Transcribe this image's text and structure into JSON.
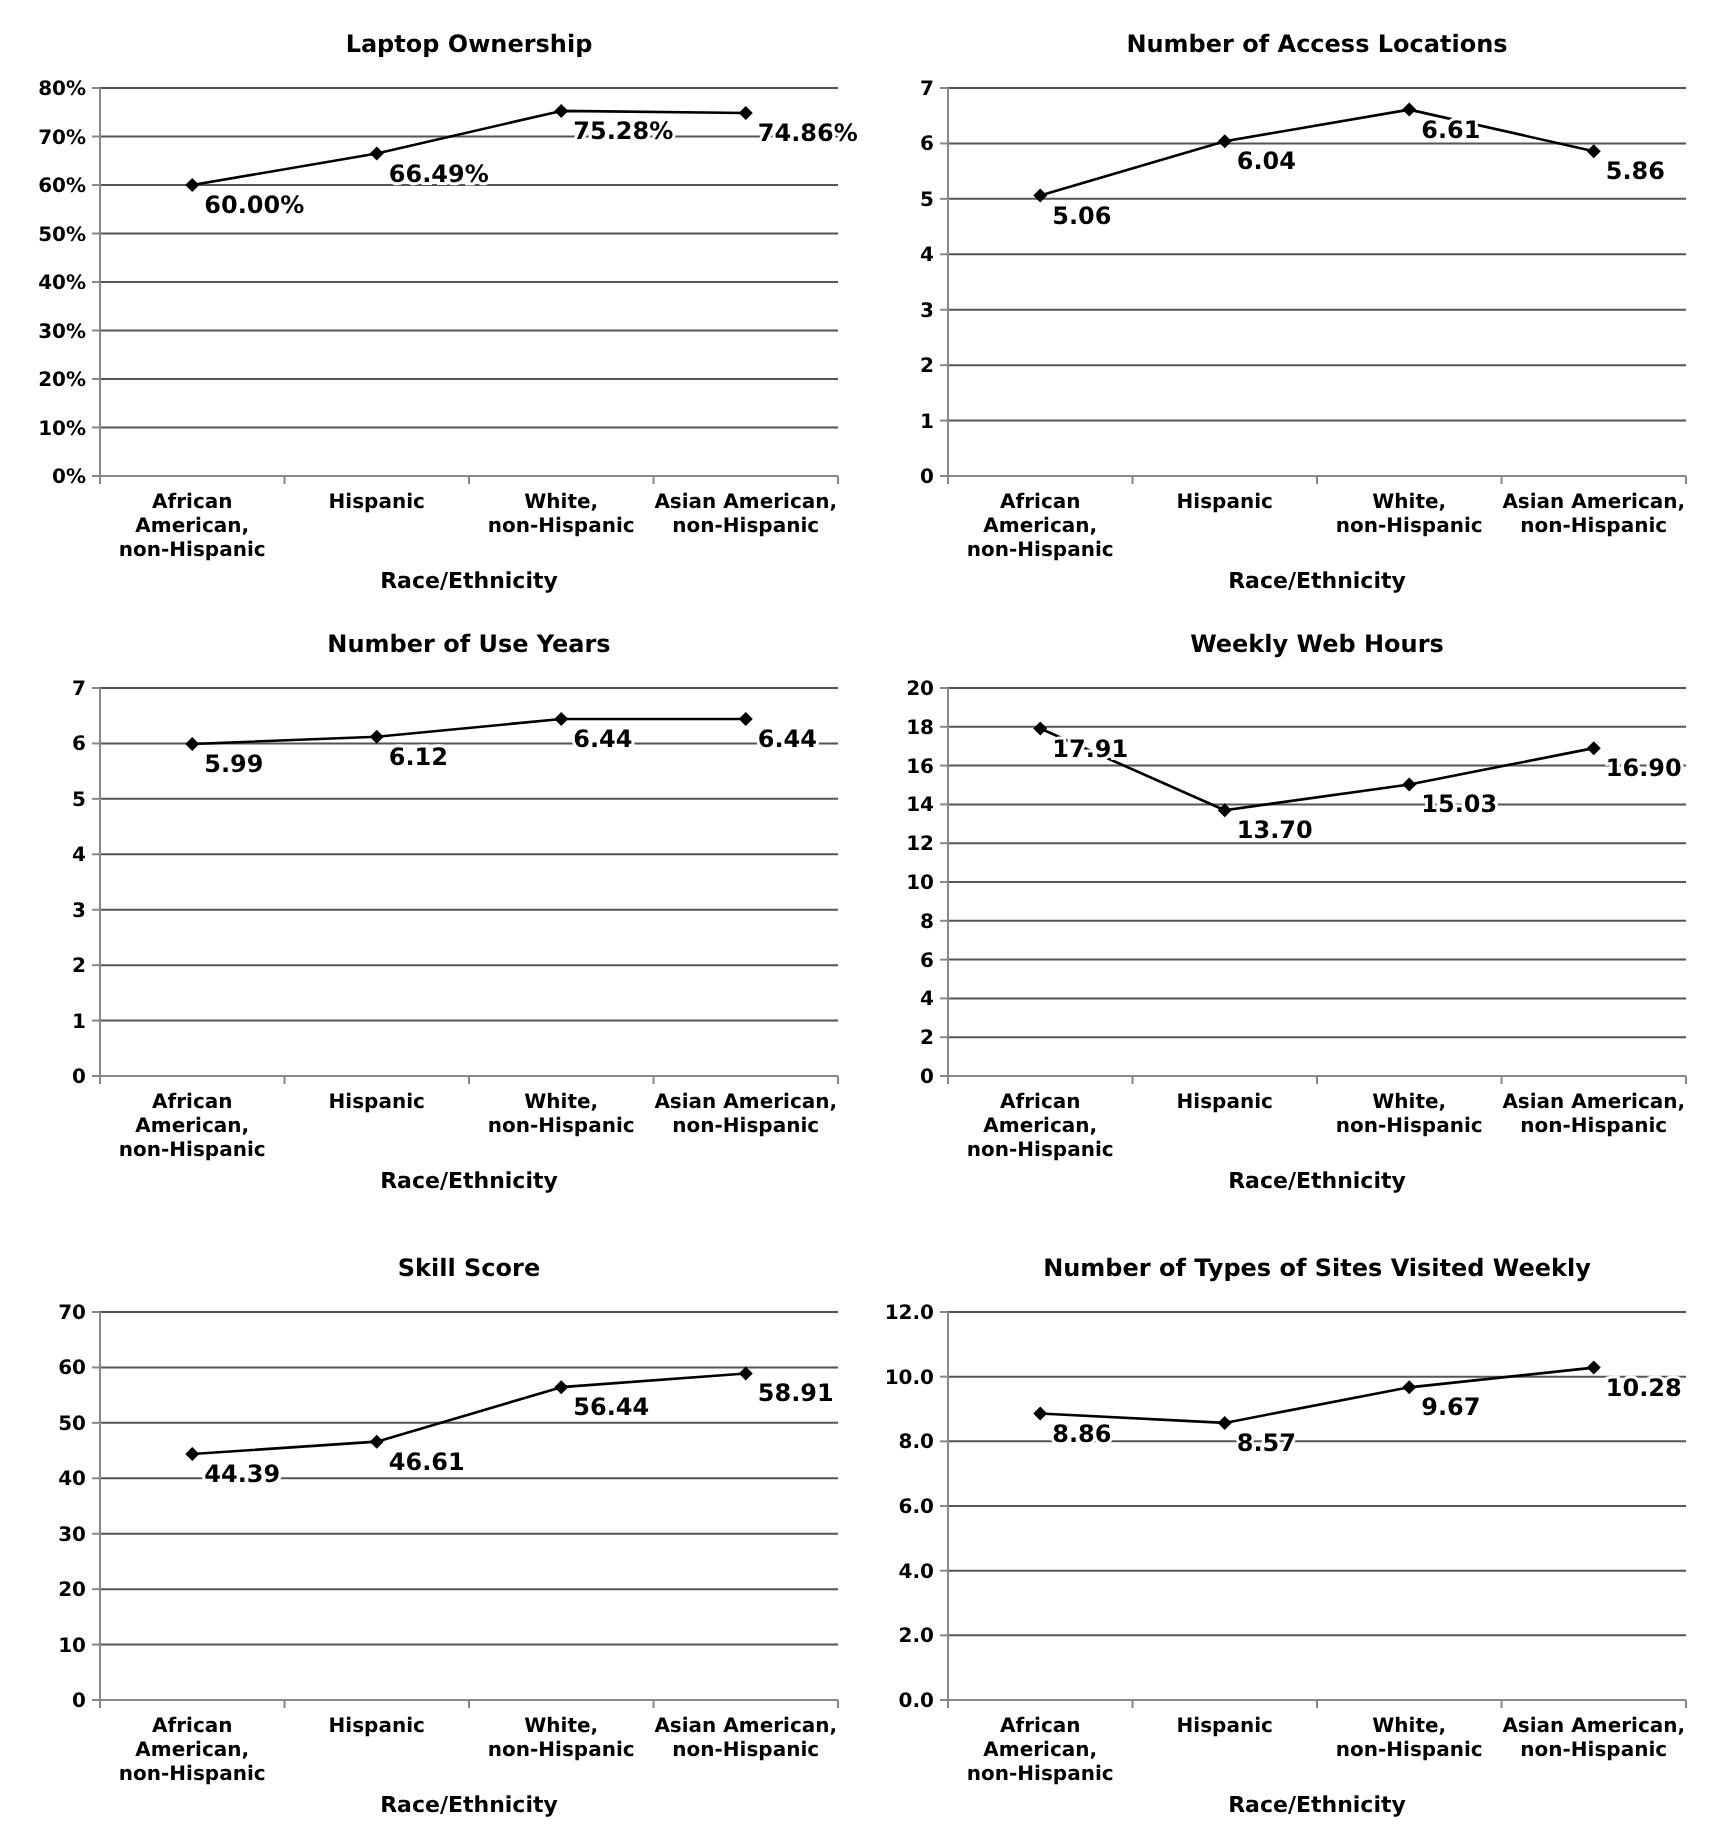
{
  "chart_data": [
    {
      "type": "line",
      "title": "Laptop Ownership",
      "xlabel": "Race/Ethnicity",
      "categories": [
        "African American, non-Hispanic",
        "Hispanic",
        "White, non-Hispanic",
        "Asian American, non-Hispanic"
      ],
      "series": [
        {
          "color": "#000000",
          "values": [
            60.0,
            66.49,
            75.28,
            74.86
          ],
          "value_labels": [
            "60.00%",
            "66.49%",
            "75.28%",
            "74.86%"
          ]
        }
      ],
      "ylim": [
        0,
        80
      ],
      "yticks": [
        {
          "value": 0,
          "label": "0%"
        },
        {
          "value": 10,
          "label": "10%"
        },
        {
          "value": 20,
          "label": "20%"
        },
        {
          "value": 30,
          "label": "30%"
        },
        {
          "value": 40,
          "label": "40%"
        },
        {
          "value": 50,
          "label": "50%"
        },
        {
          "value": 60,
          "label": "60%"
        },
        {
          "value": 70,
          "label": "70%"
        },
        {
          "value": 80,
          "label": "80%"
        }
      ],
      "grid": "y",
      "marker": "diamond",
      "line_style": "solid"
    },
    {
      "type": "line",
      "title": "Number of Access Locations",
      "xlabel": "Race/Ethnicity",
      "categories": [
        "African American, non-Hispanic",
        "Hispanic",
        "White, non-Hispanic",
        "Asian American, non-Hispanic"
      ],
      "series": [
        {
          "color": "#000000",
          "values": [
            5.06,
            6.04,
            6.61,
            5.86
          ]
        }
      ],
      "data_labels": true,
      "ylim": [
        0,
        7
      ],
      "yticks": [
        0,
        1,
        2,
        3,
        4,
        5,
        6,
        7
      ],
      "grid": "y",
      "marker": "diamond",
      "line_style": "solid"
    },
    {
      "type": "line",
      "title": "Number of Use Years",
      "xlabel": "Race/Ethnicity",
      "categories": [
        "African American, non-Hispanic",
        "Hispanic",
        "White, non-Hispanic",
        "Asian American, non-Hispanic"
      ],
      "series": [
        {
          "color": "#000000",
          "values": [
            5.99,
            6.12,
            6.44,
            6.44
          ]
        }
      ],
      "data_labels": true,
      "ylim": [
        0,
        7
      ],
      "yticks": [
        0,
        1,
        2,
        3,
        4,
        5,
        6,
        7
      ],
      "grid": "y",
      "marker": "diamond",
      "line_style": "solid"
    },
    {
      "type": "line",
      "title": "Weekly Web Hours",
      "xlabel": "Race/Ethnicity",
      "categories": [
        "African American, non-Hispanic",
        "Hispanic",
        "White, non-Hispanic",
        "Asian American, non-Hispanic"
      ],
      "series": [
        {
          "color": "#000000",
          "values": [
            17.91,
            13.7,
            15.03,
            16.9
          ],
          "value_labels": [
            "17.91",
            "13.70",
            "15.03",
            "16.90"
          ]
        }
      ],
      "ylim": [
        0,
        20
      ],
      "yticks": [
        0,
        2,
        4,
        6,
        8,
        10,
        12,
        14,
        16,
        18,
        20
      ],
      "grid": "y",
      "marker": "diamond",
      "line_style": "solid"
    },
    {
      "type": "line",
      "title": "Skill Score",
      "xlabel": "Race/Ethnicity",
      "categories": [
        "African American, non-Hispanic",
        "Hispanic",
        "White, non-Hispanic",
        "Asian American, non-Hispanic"
      ],
      "series": [
        {
          "color": "#000000",
          "values": [
            44.39,
            46.61,
            56.44,
            58.91
          ]
        }
      ],
      "data_labels": true,
      "ylim": [
        0,
        70
      ],
      "yticks": [
        0,
        10,
        20,
        30,
        40,
        50,
        60,
        70
      ],
      "grid": "y",
      "marker": "diamond",
      "line_style": "solid"
    },
    {
      "type": "line",
      "title": "Number of Types of Sites Visited Weekly",
      "xlabel": "Race/Ethnicity",
      "categories": [
        "African American, non-Hispanic",
        "Hispanic",
        "White, non-Hispanic",
        "Asian American, non-Hispanic"
      ],
      "series": [
        {
          "color": "#000000",
          "values": [
            8.86,
            8.57,
            9.67,
            10.28
          ]
        }
      ],
      "data_labels": true,
      "ylim": [
        0,
        12
      ],
      "yticks": [
        {
          "value": 0,
          "label": "0.0"
        },
        {
          "value": 2,
          "label": "2.0"
        },
        {
          "value": 4,
          "label": "4.0"
        },
        {
          "value": 6,
          "label": "6.0"
        },
        {
          "value": 8,
          "label": "8.0"
        },
        {
          "value": 10,
          "label": "10.0"
        },
        {
          "value": 12,
          "label": "12.0"
        }
      ],
      "grid": "y",
      "marker": "diamond",
      "line_style": "solid"
    }
  ]
}
